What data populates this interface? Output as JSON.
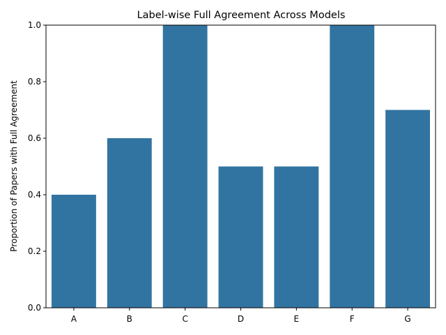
{
  "chart_data": {
    "type": "bar",
    "title": "Label-wise Full Agreement Across Models",
    "xlabel": "",
    "ylabel": "Proportion of Papers with Full Agreement",
    "categories": [
      "A",
      "B",
      "C",
      "D",
      "E",
      "F",
      "G"
    ],
    "values": [
      0.4,
      0.6,
      1.0,
      0.5,
      0.5,
      1.0,
      0.7
    ],
    "ylim": [
      0,
      1.0
    ],
    "yticks": [
      0.0,
      0.2,
      0.4,
      0.6,
      0.8,
      1.0
    ],
    "ytick_labels": [
      "0.0",
      "0.2",
      "0.4",
      "0.6",
      "0.8",
      "1.0"
    ],
    "bar_color": "#3274a1",
    "grid": false,
    "legend": "none"
  }
}
